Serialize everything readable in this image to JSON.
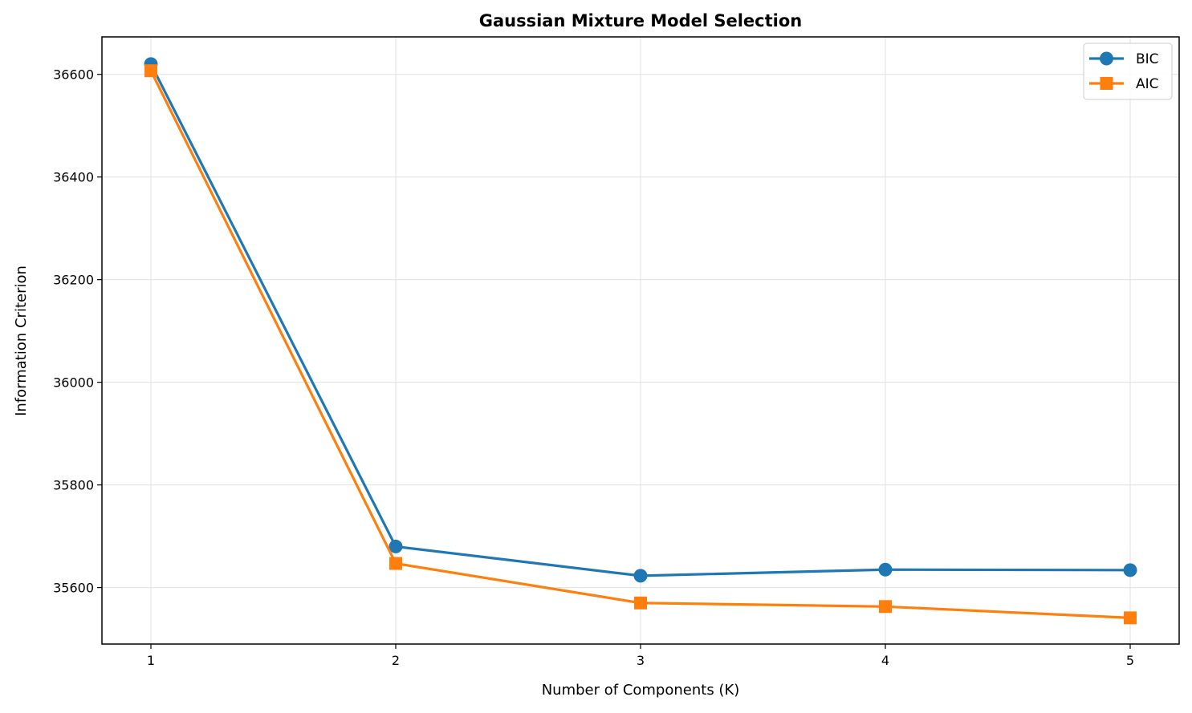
{
  "colors": {
    "bic": "#1f77b4",
    "aic": "#ff7f0e",
    "grid": "#e0e0e0",
    "axis": "#000000",
    "background": "#ffffff"
  },
  "chart_data": {
    "type": "line",
    "title": "Gaussian Mixture Model Selection",
    "xlabel": "Number of Components (K)",
    "ylabel": "Information Criterion",
    "x": [
      1,
      2,
      3,
      4,
      5
    ],
    "xticks": [
      "1",
      "2",
      "3",
      "4",
      "5"
    ],
    "xlim": [
      0.8,
      5.2
    ],
    "yticks": [
      35600,
      35800,
      36000,
      36200,
      36400,
      36600
    ],
    "ytick_labels": [
      "35600",
      "35800",
      "36000",
      "36200",
      "36400",
      "36600"
    ],
    "ylim": [
      35490,
      36673
    ],
    "grid": true,
    "legend_position": "top-right",
    "series": [
      {
        "name": "BIC",
        "marker": "circle",
        "color": "#1f77b4",
        "values": [
          36620,
          35680,
          35623,
          35635,
          35634
        ]
      },
      {
        "name": "AIC",
        "marker": "square",
        "color": "#ff7f0e",
        "values": [
          36607,
          35647,
          35570,
          35563,
          35541
        ]
      }
    ]
  }
}
